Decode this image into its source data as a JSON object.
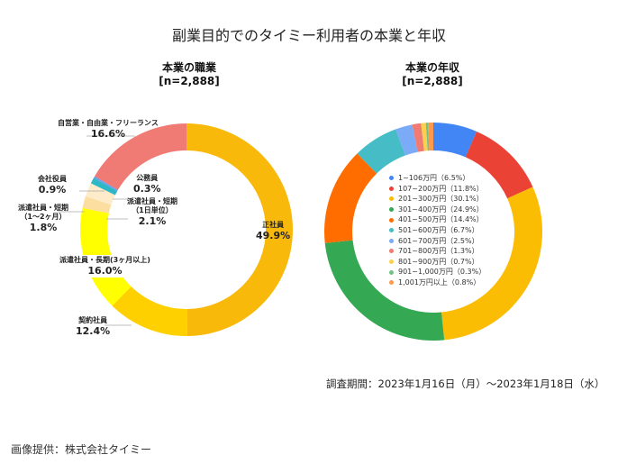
{
  "title": "副業目的でのタイミー利用者の本業と年収",
  "period": "調査期間：2023年1月16日（月）～2023年1月18日（水）",
  "credit": "画像提供：株式会社タイミー",
  "chart_data": [
    {
      "type": "pie",
      "variant": "donut",
      "title": "本業の職業",
      "subtitle": "[n=2,888]",
      "unit": "%",
      "start": "top",
      "direction": "clockwise",
      "categories": [
        "正社員",
        "契約社員",
        "派遣社員・長期(3ヶ月以上)",
        "派遣社員・短期（1〜2ヶ月）",
        "派遣社員・短期（1日単位）",
        "会社役員",
        "公務員",
        "自営業・自由業・フリーランス"
      ],
      "values": [
        49.9,
        12.4,
        16.0,
        1.8,
        2.1,
        0.9,
        0.3,
        16.6
      ],
      "labels": [
        {
          "name_lines": [
            "正社員"
          ],
          "pct": "49.9%"
        },
        {
          "name_lines": [
            "契約社員"
          ],
          "pct": "12.4%"
        },
        {
          "name_lines": [
            "派遣社員・長期(3ヶ月以上)"
          ],
          "pct": "16.0%"
        },
        {
          "name_lines": [
            "派遣社員・短期",
            "（1〜2ヶ月）"
          ],
          "pct": "1.8%"
        },
        {
          "name_lines": [
            "派遣社員・短期",
            "（1日単位）"
          ],
          "pct": "2.1%"
        },
        {
          "name_lines": [
            "会社役員"
          ],
          "pct": "0.9%"
        },
        {
          "name_lines": [
            "公務員"
          ],
          "pct": "0.3%"
        },
        {
          "name_lines": [
            "自営業・自由業・フリーランス"
          ],
          "pct": "16.6%"
        }
      ],
      "colors": [
        "#F9B90B",
        "#FFD000",
        "#FFFF00",
        "#FCDFA0",
        "#FDEBC9",
        "#2EB8C6",
        "#6D9EEB",
        "#EF7B74"
      ]
    },
    {
      "type": "pie",
      "variant": "donut",
      "title": "本業の年収",
      "subtitle": "[n=2,888]",
      "unit": "%",
      "start": "top",
      "direction": "clockwise",
      "legend_position": "center",
      "categories": [
        "1~106万円",
        "107~200万円",
        "201~300万円",
        "301~400万円",
        "401~500万円",
        "501~600万円",
        "601~700万円",
        "701~800万円",
        "801~900万円",
        "901~1,000万円",
        "1,001万円以上"
      ],
      "values": [
        6.5,
        11.8,
        30.1,
        24.9,
        14.4,
        6.7,
        2.5,
        1.3,
        0.7,
        0.3,
        0.8
      ],
      "legend": [
        "1~106万円（6.5%）",
        "107~200万円（11.8%）",
        "201~300万円（30.1%）",
        "301~400万円（24.9%）",
        "401~500万円（14.4%）",
        "501~600万円（6.7%）",
        "601~700万円（2.5%）",
        "701~800万円（1.3%）",
        "801~900万円（0.7%）",
        "901~1,000万円（0.3%）",
        "1,001万円以上（0.8%）"
      ],
      "colors": [
        "#4285F4",
        "#EA4335",
        "#FBBC04",
        "#34A853",
        "#FF6D01",
        "#46BDC6",
        "#7BAAF7",
        "#F07B72",
        "#FCD04F",
        "#71C287",
        "#FF994D"
      ]
    }
  ]
}
